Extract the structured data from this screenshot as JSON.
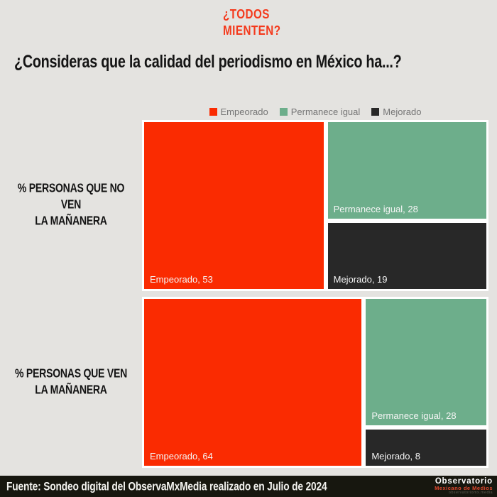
{
  "brand": {
    "line1": "¿TODOS",
    "line2": "MIENTEN?"
  },
  "title": "¿Consideras que la calidad del periodismo en México ha...?",
  "chart_data": {
    "type": "mosaic",
    "title": "¿Consideras que la calidad del periodismo en México ha...?",
    "legend": [
      "Empeorado",
      "Permanece igual",
      "Mejorado"
    ],
    "legend_position": "top-center",
    "series_colors": {
      "Empeorado": "#fa2b01",
      "Permanece igual": "#6dae8b",
      "Mejorado": "#282828"
    },
    "label_format": "{name}, {value}",
    "rows": [
      {
        "category": "% PERSONAS QUE NO VEN LA MAÑANERA",
        "category_lines": [
          "% PERSONAS QUE NO VEN",
          "LA MAÑANERA"
        ],
        "values": {
          "Empeorado": 53,
          "Permanece igual": 28,
          "Mejorado": 19
        }
      },
      {
        "category": "% PERSONAS QUE VEN LA MAÑANERA",
        "category_lines": [
          "% PERSONAS QUE VEN",
          "LA MAÑANERA"
        ],
        "values": {
          "Empeorado": 64,
          "Permanece igual": 28,
          "Mejorado": 8
        }
      }
    ]
  },
  "footer": {
    "source": "Fuente: Sondeo digital del ObservaMxMedia realizado en Julio de 2024",
    "logo": {
      "line1": "Observatorio",
      "line2": "Mexicano de Medios",
      "line3": "observatoriomx.media"
    }
  },
  "colors": {
    "background": "#e4e3e0",
    "brand_red": "#f4391c",
    "title_black": "#141414",
    "legend_text": "#757575",
    "footer_bg": "#17170f",
    "block_border": "#ffffff"
  }
}
